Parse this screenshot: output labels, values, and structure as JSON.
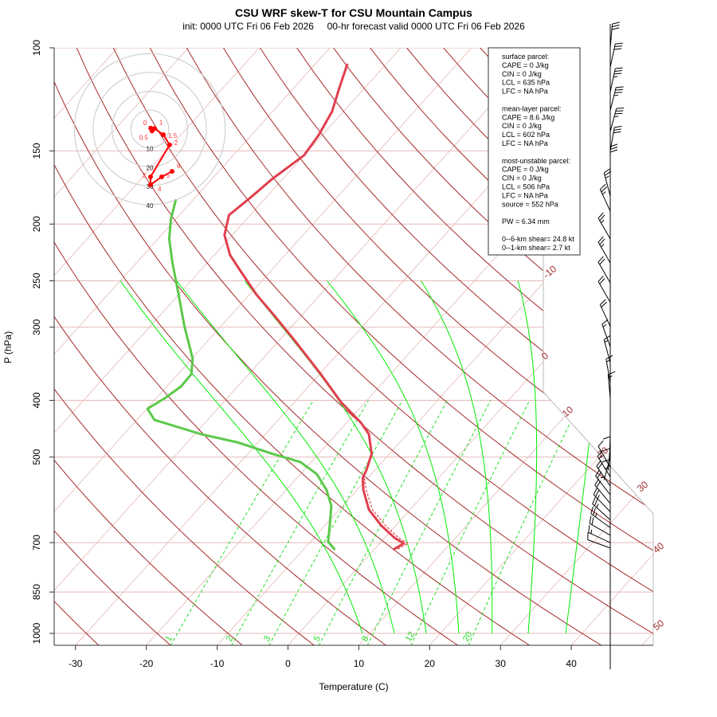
{
  "chart_data": {
    "type": "line",
    "subtype": "skew-T log-P",
    "title": "CSU WRF skew-T for CSU Mountain Campus",
    "subtitle": "init: 0000 UTC Fri 06 Feb 2026     00-hr forecast valid 0000 UTC Fri 06 Feb 2026",
    "xlabel": "Temperature (C)",
    "ylabel": "P (hPa)",
    "xlim": [
      -33,
      45
    ],
    "ylim": [
      1050,
      100
    ],
    "y_scale": "log",
    "x_ticks": [
      -30,
      -20,
      -10,
      0,
      10,
      20,
      30,
      40
    ],
    "x_tick_labels": [
      "-30",
      "-20",
      "-10",
      "0",
      "10",
      "20",
      "30",
      "40"
    ],
    "y_ticks": [
      100,
      150,
      200,
      250,
      300,
      400,
      500,
      700,
      850,
      1000
    ],
    "y_tick_labels": [
      "100",
      "150",
      "200",
      "250",
      "300",
      "400",
      "500",
      "700",
      "850",
      "1000"
    ],
    "isotherm_labels": [
      "-10",
      "0",
      "10",
      "20",
      "30",
      "40",
      "50"
    ],
    "mixing_ratio_labels": [
      "1",
      "2",
      "3",
      "5",
      "8",
      "12",
      "20"
    ],
    "mixing_ratios_gkg": [
      1,
      2,
      3,
      5,
      8,
      12,
      20
    ],
    "moist_adiabat_1000hPa_C": [
      9,
      13.5,
      18,
      22.6,
      27.3,
      32.4,
      37.7
    ],
    "colors": {
      "temperature": "#e0404f",
      "dewpoint": "#5cc84a",
      "dry_adiabat": "#a52a2a",
      "isotherm": "#e6b8b8",
      "moist_adiabat": "#00ee00",
      "mixing_ratio": "#22dd22",
      "hodograph": "#ff0000",
      "barb": "#000000"
    },
    "series": [
      {
        "key": "temperature",
        "pressure": [
          106.5,
          117,
          128.5,
          141,
          152.6,
          167.7,
          180.3,
          193.1,
          208.8,
          225.8,
          240.4,
          264,
          290,
          318.7,
          361,
          403,
          436,
          457,
          494,
          526,
          543,
          569,
          615,
          655,
          687,
          702,
          720
        ],
        "values": [
          -65.5,
          -63.6,
          -61.6,
          -60.5,
          -60.0,
          -61.5,
          -62.2,
          -63.0,
          -61.1,
          -57.8,
          -54.3,
          -49.0,
          -43.1,
          -37.3,
          -29.8,
          -23.4,
          -18.1,
          -15.4,
          -12.5,
          -11.2,
          -10.7,
          -9.1,
          -5.8,
          -2.0,
          1.4,
          3.4,
          2.7
        ]
      },
      {
        "key": "virtual_temperature",
        "pressure": [
          543,
          569,
          615,
          655,
          687,
          702,
          720
        ],
        "values": [
          -10.5,
          -8.7,
          -5.3,
          -1.4,
          2.0,
          4.0,
          3.2
        ]
      },
      {
        "key": "dewpoint",
        "pressure": [
          181.4,
          196.1,
          212.1,
          233,
          264,
          299.4,
          339.4,
          361,
          378.6,
          396.8,
          413.5,
          432,
          457,
          471.6,
          494,
          510,
          534.6,
          569,
          605.7,
          655,
          697.4,
          720
        ],
        "values": [
          -72.5,
          -70.7,
          -68.4,
          -64.9,
          -60.0,
          -55.1,
          -49.9,
          -48.1,
          -48.0,
          -48.8,
          -49.9,
          -47.5,
          -39.1,
          -33.0,
          -26.4,
          -21.5,
          -17.7,
          -14.3,
          -11.6,
          -9.3,
          -7.5,
          -5.5
        ]
      }
    ],
    "wind_barbs": [
      {
        "p": 100,
        "dir": 5,
        "kt": 30
      },
      {
        "p": 108,
        "dir": 12,
        "kt": 30
      },
      {
        "p": 119,
        "dir": 12,
        "kt": 35
      },
      {
        "p": 128,
        "dir": 14,
        "kt": 35
      },
      {
        "p": 139,
        "dir": 15,
        "kt": 35
      },
      {
        "p": 150,
        "dir": 10,
        "kt": 30
      },
      {
        "p": 162,
        "dir": 0,
        "kt": 30
      },
      {
        "p": 179,
        "dir": 345,
        "kt": 25
      },
      {
        "p": 190,
        "dir": 335,
        "kt": 25
      },
      {
        "p": 212,
        "dir": 330,
        "kt": 25
      },
      {
        "p": 233,
        "dir": 330,
        "kt": 25
      },
      {
        "p": 252,
        "dir": 330,
        "kt": 20
      },
      {
        "p": 272,
        "dir": 330,
        "kt": 20
      },
      {
        "p": 299,
        "dir": 335,
        "kt": 20
      },
      {
        "p": 324,
        "dir": 340,
        "kt": 15
      },
      {
        "p": 345,
        "dir": 345,
        "kt": 15
      },
      {
        "p": 373,
        "dir": 350,
        "kt": 15
      },
      {
        "p": 397,
        "dir": 355,
        "kt": 15
      },
      {
        "p": 420,
        "dir": 180,
        "kt": 10
      },
      {
        "p": 440,
        "dir": 180,
        "kt": 10
      },
      {
        "p": 460,
        "dir": 182,
        "kt": 10
      },
      {
        "p": 480,
        "dir": 185,
        "kt": 5
      },
      {
        "p": 500,
        "dir": 195,
        "kt": 5
      },
      {
        "p": 520,
        "dir": 330,
        "kt": 10
      },
      {
        "p": 540,
        "dir": 328,
        "kt": 15
      },
      {
        "p": 560,
        "dir": 325,
        "kt": 20
      },
      {
        "p": 580,
        "dir": 322,
        "kt": 20
      },
      {
        "p": 600,
        "dir": 320,
        "kt": 20
      },
      {
        "p": 620,
        "dir": 316,
        "kt": 25
      },
      {
        "p": 640,
        "dir": 312,
        "kt": 25
      },
      {
        "p": 660,
        "dir": 306,
        "kt": 25
      },
      {
        "p": 680,
        "dir": 300,
        "kt": 20
      },
      {
        "p": 700,
        "dir": 295,
        "kt": 15
      },
      {
        "p": 715,
        "dir": 290,
        "kt": 10
      }
    ],
    "hodograph": {
      "ring_labels": [
        "10",
        "20",
        "30",
        "40"
      ],
      "ring_kt": [
        10,
        20,
        30,
        40
      ],
      "points": [
        {
          "label": "0",
          "u": 0.5,
          "v": 0.5
        },
        {
          "label": "0.5",
          "u": 1.2,
          "v": -1.0
        },
        {
          "label": "1",
          "u": 2.5,
          "v": 0.3
        },
        {
          "label": "1.5",
          "u": 7.2,
          "v": -3.0
        },
        {
          "label": "2",
          "u": 10.5,
          "v": -8.4
        },
        {
          "label": "3",
          "u": 0.4,
          "v": -25.3
        },
        {
          "label": "4",
          "u": 0.4,
          "v": -29.5
        },
        {
          "label": "5",
          "u": 6.3,
          "v": -25.3
        },
        {
          "label": "6",
          "u": 11.8,
          "v": -22.4
        }
      ]
    }
  },
  "info_box": {
    "lines": [
      "surface parcel:",
      "CAPE = 0 J/kg",
      "CIN = 0 J/kg",
      "LCL = 635 hPa",
      "LFC = NA hPa",
      "",
      "mean-layer parcel:",
      "CAPE = 8.6 J/kg",
      "CIN = 0 J/kg",
      "LCL = 602 hPa",
      "LFC = NA hPa",
      "",
      "most-unstable parcel:",
      "CAPE = 0 J/kg",
      "CIN = 0 J/kg",
      "LCL = 506 hPa",
      "LFC = NA hPa",
      "source = 552 hPa",
      "",
      "PW =  6.34 mm",
      "",
      "0--6-km shear= 24.8 kt",
      "0--1-km shear= 2.7 kt"
    ]
  }
}
